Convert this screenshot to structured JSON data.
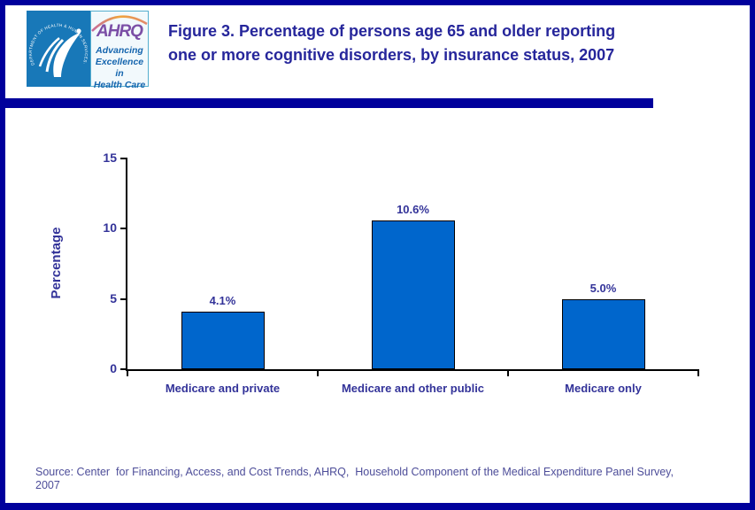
{
  "header": {
    "logo": {
      "seal_ring_text": "DEPARTMENT OF HEALTH & HUMAN SERVICES·USA",
      "ahrq_acronym": "AHRQ",
      "tagline": [
        "Advancing",
        "Excellence in",
        "Health Care"
      ]
    },
    "title": "Figure 3. Percentage of persons age 65 and older reporting\none or more cognitive disorders, by insurance status, 2007"
  },
  "chart_data": {
    "type": "bar",
    "title": "Percentage of persons age 65 and older reporting one or more cognitive disorders, by insurance status, 2007",
    "categories": [
      "Medicare and private",
      "Medicare and other public",
      "Medicare only"
    ],
    "values": [
      4.1,
      10.6,
      5.0
    ],
    "data_labels": [
      "4.1%",
      "10.6%",
      "5.0%"
    ],
    "xlabel": "",
    "ylabel": "Percentage",
    "ylim": [
      0,
      15
    ],
    "yticks": [
      0,
      5,
      10,
      15
    ],
    "grid": false,
    "legend": "none",
    "bar_color": "#0066CC",
    "bar_border_color": "#000000"
  },
  "footer": {
    "source": "Source: Center  for Financing, Access, and Cost Trends, AHRQ,  Household Component of the Medical Expenditure Panel Survey,\n2007"
  },
  "colors": {
    "frame_navy": "#00009C",
    "title_navy": "#26269B",
    "chart_text_navy": "#333399",
    "source_text": "#4D4D99",
    "hhs_blue": "#1878B8",
    "ahrq_purple": "#7B4FA6",
    "swoosh_orange": "#F0A43C"
  }
}
